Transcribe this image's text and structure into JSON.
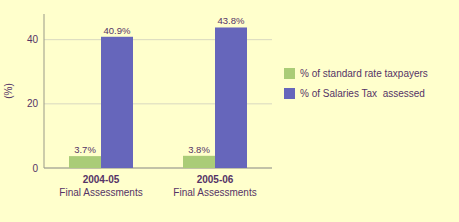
{
  "chart_data": {
    "type": "bar",
    "categories": [
      "2004-05\nFinal Assessments",
      "2005-06\nFinal Assessments"
    ],
    "series": [
      {
        "name": "% of standard rate taxpayers",
        "color": "#AACC77",
        "values": [
          3.7,
          3.8
        ],
        "value_labels": [
          "3.7%",
          "3.8%"
        ]
      },
      {
        "name": "% of Salaries Tax  assessed",
        "color": "#6666BB",
        "values": [
          40.9,
          43.8
        ],
        "value_labels": [
          "40.9%",
          "43.8%"
        ]
      }
    ],
    "y_label": "(%)",
    "ylim": [
      0,
      48
    ],
    "yticks": [
      0,
      20,
      40
    ],
    "grid": true,
    "legend": "right",
    "data_labels": true
  }
}
